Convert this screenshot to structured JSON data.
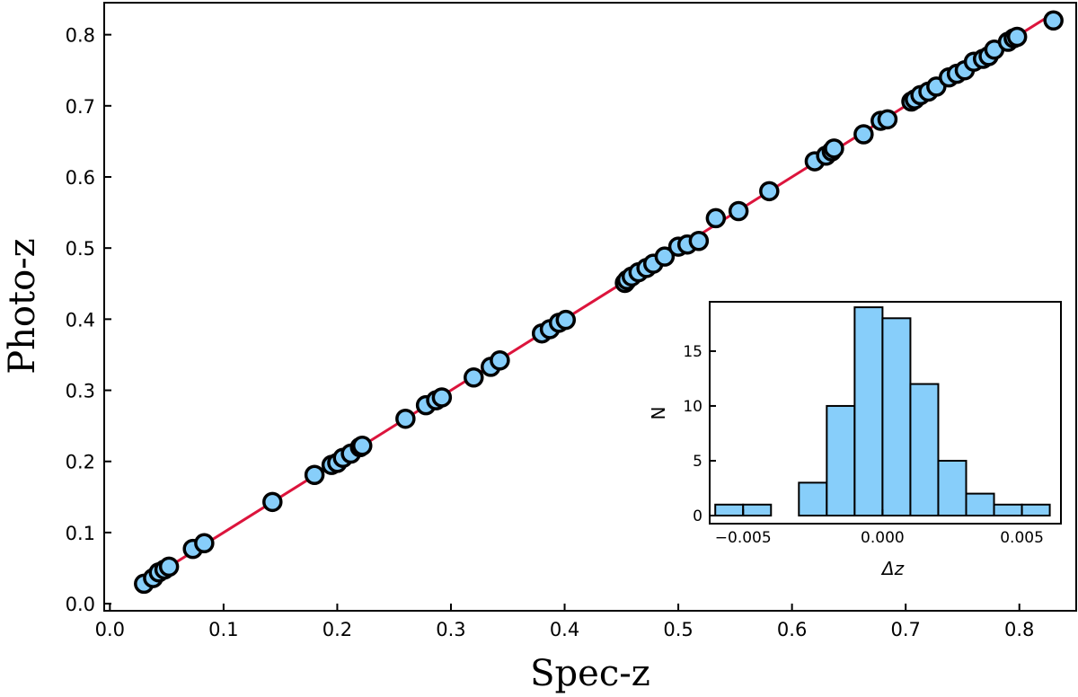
{
  "colors": {
    "marker_fill": "#87CEFA",
    "marker_edge": "#000000",
    "line": "#DC143C",
    "bar_fill": "#87CEFA",
    "bar_edge": "#000000"
  },
  "chart_data": [
    {
      "type": "scatter",
      "title": "",
      "xlabel": "Spec-z",
      "ylabel": "Photo-z",
      "xlim": [
        -0.005,
        0.85
      ],
      "ylim": [
        -0.01,
        0.845
      ],
      "xticks": [
        0.0,
        0.1,
        0.2,
        0.3,
        0.4,
        0.5,
        0.6,
        0.7,
        0.8
      ],
      "xtick_labels": [
        "0.0",
        "0.1",
        "0.2",
        "0.3",
        "0.4",
        "0.5",
        "0.6",
        "0.7",
        "0.8"
      ],
      "yticks": [
        0.0,
        0.1,
        0.2,
        0.3,
        0.4,
        0.5,
        0.6,
        0.7,
        0.8
      ],
      "ytick_labels": [
        "0.0",
        "0.1",
        "0.2",
        "0.3",
        "0.4",
        "0.5",
        "0.6",
        "0.7",
        "0.8"
      ],
      "grid": false,
      "one_to_one_line": {
        "x": [
          0.03,
          0.83
        ],
        "y": [
          0.03,
          0.83
        ]
      },
      "points": {
        "x": [
          0.03,
          0.038,
          0.043,
          0.048,
          0.052,
          0.073,
          0.083,
          0.143,
          0.18,
          0.195,
          0.2,
          0.205,
          0.212,
          0.22,
          0.222,
          0.26,
          0.278,
          0.287,
          0.292,
          0.32,
          0.335,
          0.343,
          0.38,
          0.387,
          0.395,
          0.401,
          0.453,
          0.455,
          0.459,
          0.465,
          0.472,
          0.478,
          0.488,
          0.5,
          0.508,
          0.518,
          0.533,
          0.553,
          0.58,
          0.62,
          0.63,
          0.635,
          0.637,
          0.663,
          0.678,
          0.684,
          0.705,
          0.708,
          0.713,
          0.72,
          0.727,
          0.738,
          0.745,
          0.752,
          0.76,
          0.768,
          0.773,
          0.778,
          0.79,
          0.795,
          0.798,
          0.83
        ],
        "y": [
          0.028,
          0.036,
          0.044,
          0.048,
          0.052,
          0.077,
          0.085,
          0.143,
          0.181,
          0.195,
          0.198,
          0.205,
          0.211,
          0.22,
          0.222,
          0.26,
          0.279,
          0.286,
          0.29,
          0.318,
          0.333,
          0.342,
          0.38,
          0.386,
          0.395,
          0.399,
          0.451,
          0.455,
          0.46,
          0.466,
          0.472,
          0.478,
          0.488,
          0.502,
          0.505,
          0.51,
          0.542,
          0.552,
          0.58,
          0.622,
          0.63,
          0.636,
          0.64,
          0.66,
          0.679,
          0.681,
          0.706,
          0.709,
          0.715,
          0.72,
          0.727,
          0.74,
          0.745,
          0.75,
          0.762,
          0.766,
          0.77,
          0.779,
          0.79,
          0.795,
          0.797,
          0.82
        ]
      }
    },
    {
      "type": "bar",
      "title": "",
      "xlabel": "Δz",
      "ylabel": "N",
      "xlim": [
        -0.0062,
        0.0064
      ],
      "ylim": [
        0,
        19.5
      ],
      "xticks": [
        -0.005,
        0.0,
        0.005
      ],
      "xtick_labels": [
        "−0.005",
        "0.000",
        "0.005"
      ],
      "yticks": [
        0,
        5,
        10,
        15
      ],
      "ytick_labels": [
        "0",
        "5",
        "10",
        "15"
      ],
      "bin_width": 0.001,
      "bin_left_edges": [
        -0.006,
        -0.005,
        -0.004,
        -0.003,
        -0.002,
        -0.001,
        0.0,
        0.001,
        0.002,
        0.003,
        0.004,
        0.005
      ],
      "values": [
        1,
        1,
        0,
        3,
        10,
        19,
        18,
        12,
        5,
        2,
        1,
        1
      ]
    }
  ]
}
